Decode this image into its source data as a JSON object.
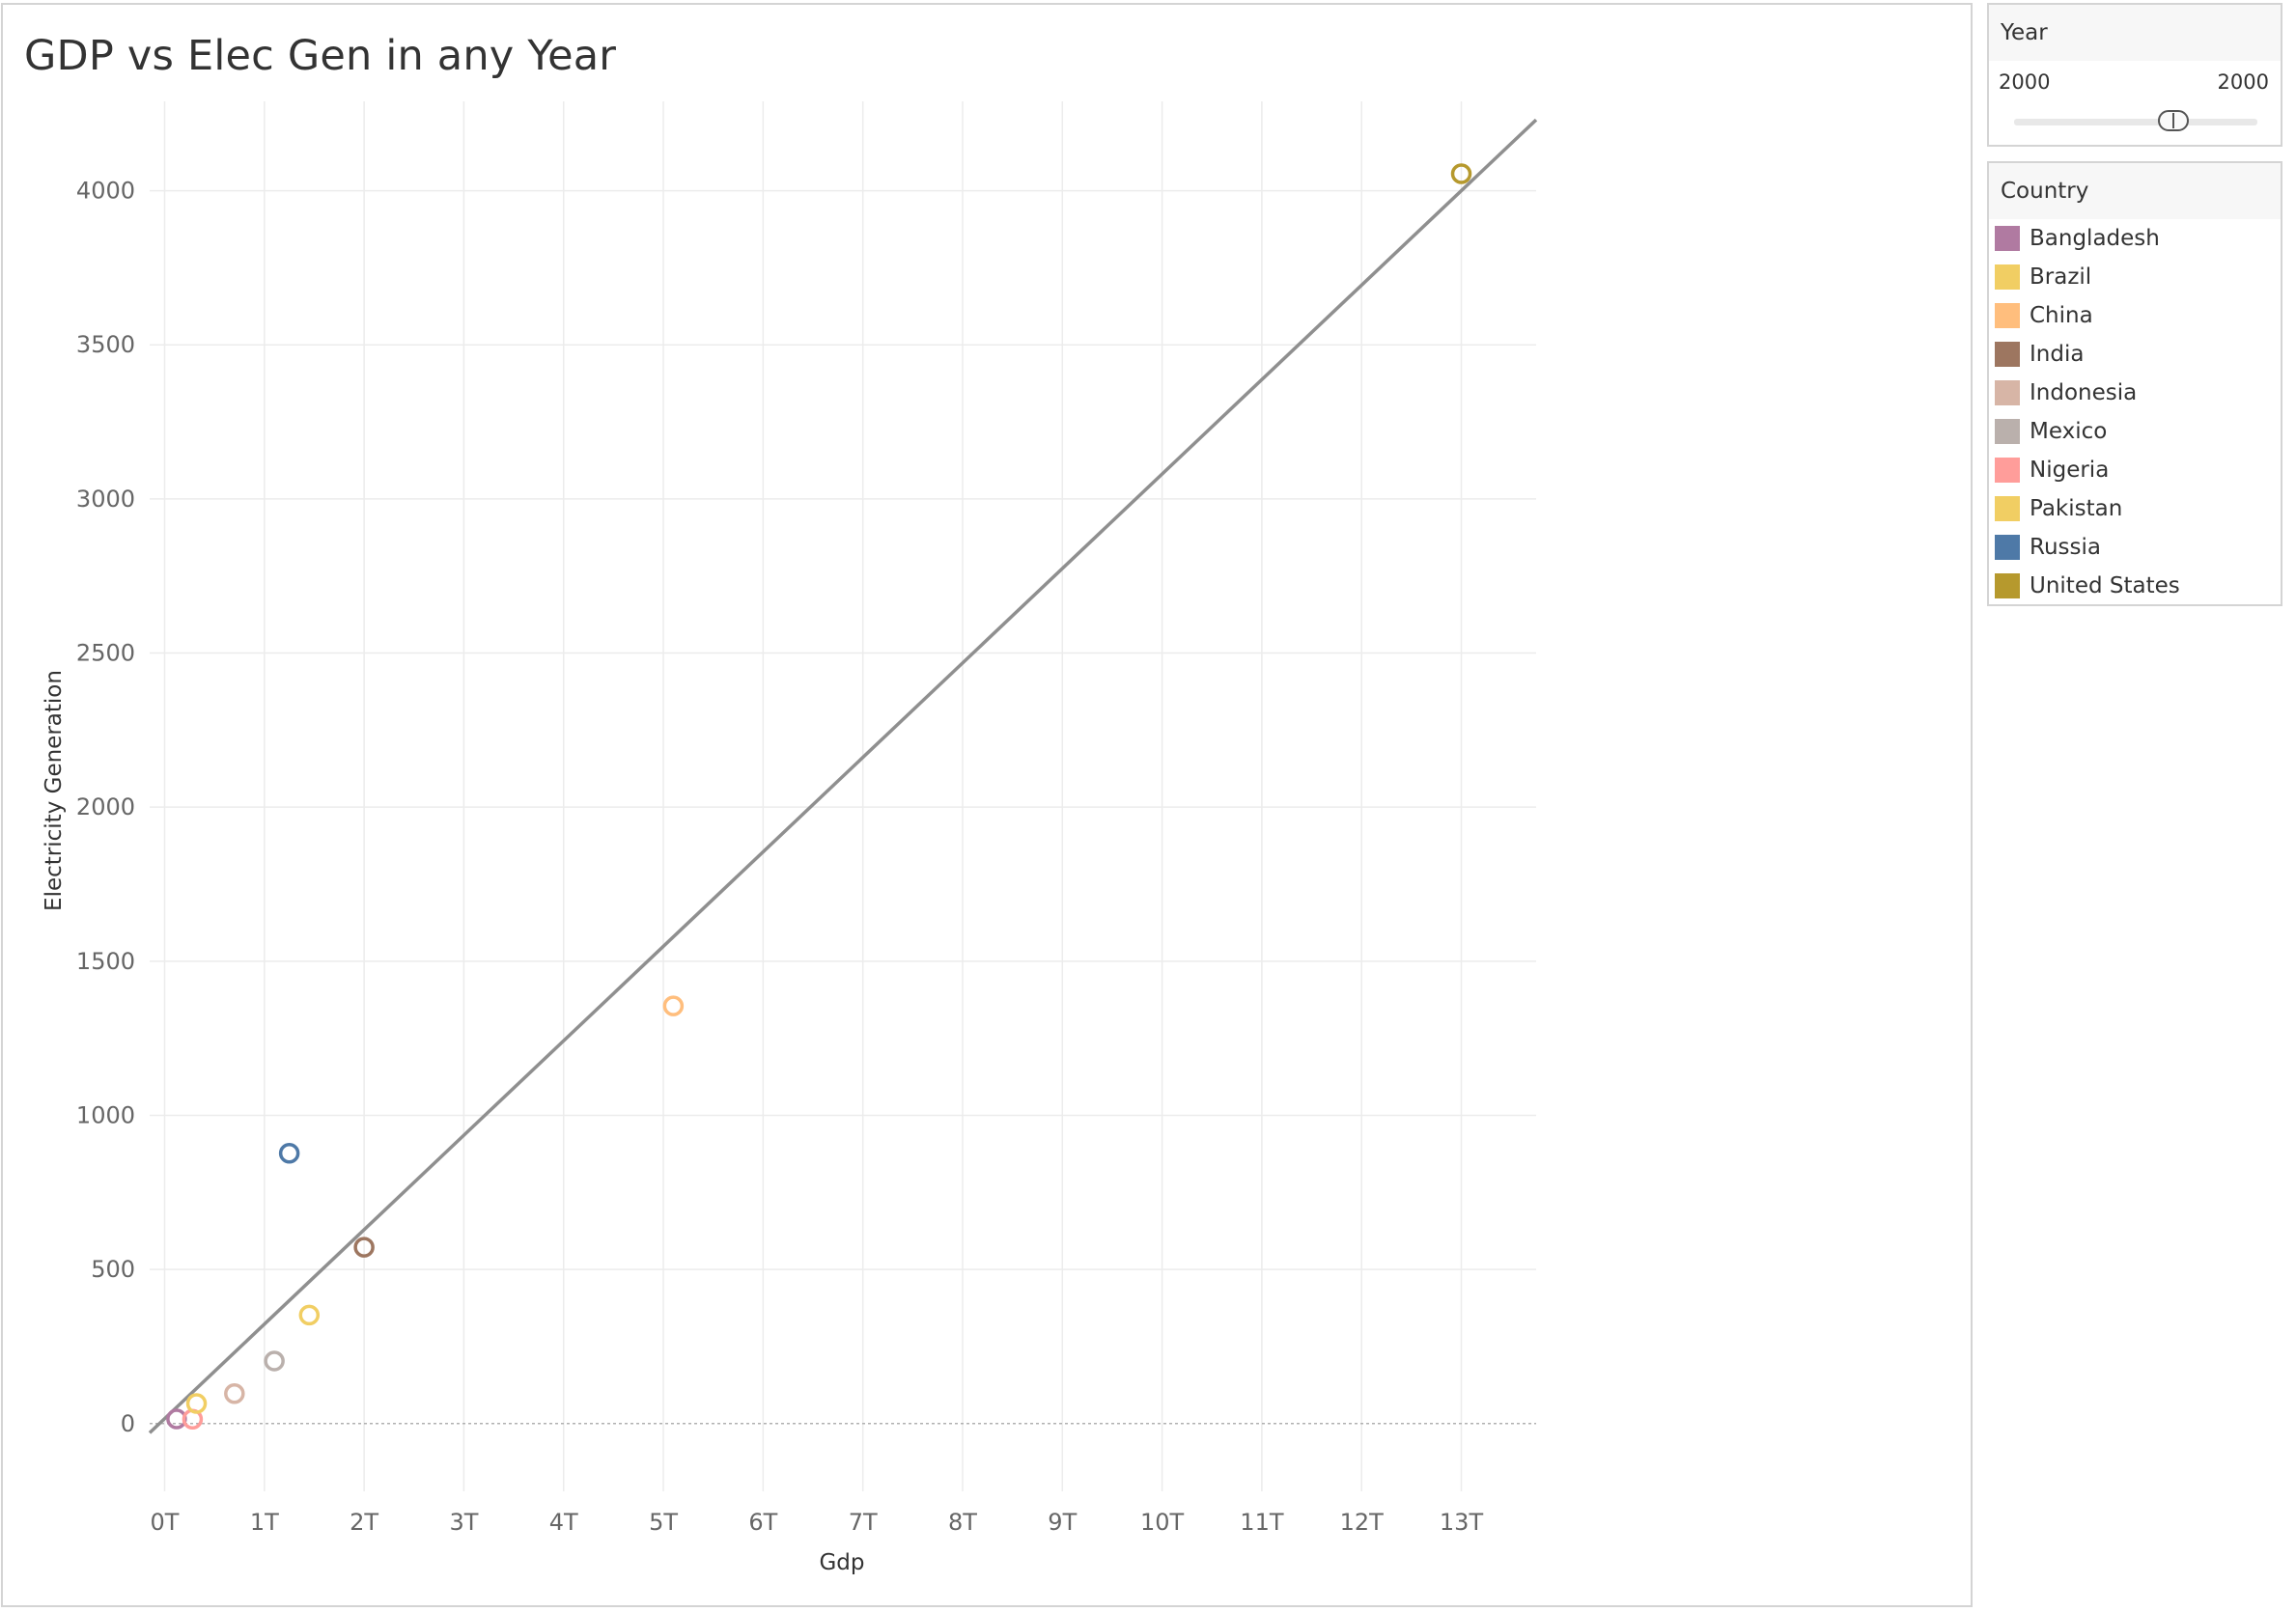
{
  "chart_title": "GDP vs Elec Gen in any Year",
  "filters": {
    "year": {
      "title": "Year",
      "min_label": "2000",
      "max_label": "2000"
    }
  },
  "legend": {
    "title": "Country",
    "items": [
      {
        "label": "Bangladesh",
        "color": "#B07AA1"
      },
      {
        "label": "Brazil",
        "color": "#F1CE63"
      },
      {
        "label": "China",
        "color": "#FFBE7D"
      },
      {
        "label": "India",
        "color": "#9D7660"
      },
      {
        "label": "Indonesia",
        "color": "#D7B5A6"
      },
      {
        "label": "Mexico",
        "color": "#BAB0AC"
      },
      {
        "label": "Nigeria",
        "color": "#FF9D9A"
      },
      {
        "label": "Pakistan",
        "color": "#F1CE63"
      },
      {
        "label": "Russia",
        "color": "#4E79A7"
      },
      {
        "label": "United States",
        "color": "#B6992D"
      }
    ]
  },
  "chart_data": {
    "type": "scatter",
    "title": "GDP vs Elec Gen in any Year",
    "xlabel": "Gdp",
    "ylabel": "Electricity Generation",
    "x_ticks": [
      0,
      1,
      2,
      3,
      4,
      5,
      6,
      7,
      8,
      9,
      10,
      11,
      12,
      13
    ],
    "x_tick_labels": [
      "0T",
      "1T",
      "2T",
      "3T",
      "4T",
      "5T",
      "6T",
      "7T",
      "8T",
      "9T",
      "10T",
      "11T",
      "12T",
      "13T"
    ],
    "y_ticks": [
      0,
      500,
      1000,
      1500,
      2000,
      2500,
      3000,
      3500,
      4000
    ],
    "y_tick_labels": [
      "0",
      "500",
      "1000",
      "1500",
      "2000",
      "2500",
      "3000",
      "3500",
      "4000"
    ],
    "xlim": [
      -0.15,
      13.75
    ],
    "ylim": [
      -220,
      4290
    ],
    "grid": true,
    "legend_position": "right",
    "x_unit": "trillion",
    "points": [
      {
        "country": "Bangladesh",
        "x": 0.12,
        "y": 15,
        "color": "#B07AA1"
      },
      {
        "country": "Nigeria",
        "x": 0.28,
        "y": 14,
        "color": "#FF9D9A"
      },
      {
        "country": "Pakistan",
        "x": 0.32,
        "y": 65,
        "color": "#F1CE63"
      },
      {
        "country": "Indonesia",
        "x": 0.7,
        "y": 97,
        "color": "#D7B5A6"
      },
      {
        "country": "Mexico",
        "x": 1.1,
        "y": 203,
        "color": "#BAB0AC"
      },
      {
        "country": "Russia",
        "x": 1.25,
        "y": 877,
        "color": "#4E79A7"
      },
      {
        "country": "Brazil",
        "x": 1.45,
        "y": 352,
        "color": "#F1CE63"
      },
      {
        "country": "India",
        "x": 2.0,
        "y": 572,
        "color": "#9D7660"
      },
      {
        "country": "China",
        "x": 5.1,
        "y": 1355,
        "color": "#FFBE7D"
      },
      {
        "country": "United States",
        "x": 13.0,
        "y": 4055,
        "color": "#B6992D"
      }
    ],
    "trend_line": {
      "x": [
        -0.15,
        13.75
      ],
      "y": [
        -30,
        4230
      ],
      "color": "#8f8f8f"
    }
  }
}
